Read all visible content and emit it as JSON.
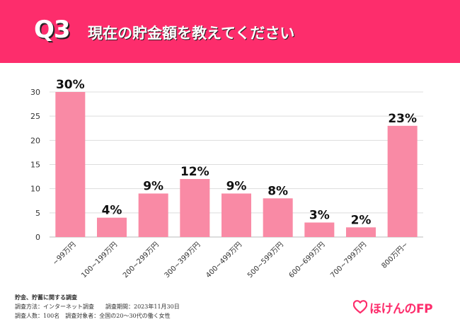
{
  "header": {
    "question_label": "Q3",
    "title": "現在の貯金額を教えてください",
    "background_color": "#fd2d6c"
  },
  "chart_data": {
    "type": "bar",
    "categories": [
      "~99万円",
      "100~199万円",
      "200~299万円",
      "300~399万円",
      "400~499万円",
      "500~599万円",
      "600~699万円",
      "700~799万円",
      "800万円~"
    ],
    "values": [
      30,
      4,
      9,
      12,
      9,
      8,
      3,
      2,
      23
    ],
    "data_labels": [
      "30%",
      "4%",
      "9%",
      "12%",
      "9%",
      "8%",
      "3%",
      "2%",
      "23%"
    ],
    "ylim": [
      0,
      30
    ],
    "yticks": [
      0,
      5,
      10,
      15,
      20,
      25,
      30
    ],
    "grid": true,
    "bar_color": "#f98aa5"
  },
  "footer": {
    "lines": [
      "貯金、貯蓄に関する調査",
      "調査方法：インターネット調査　　調査期間：2023年11月30日",
      "調査人数：100名　調査対象者：全国の20～30代の働く女性"
    ]
  },
  "logo": {
    "text": "ほけんのFP",
    "icon": "heart-icon",
    "color": "#fd2d6c"
  }
}
